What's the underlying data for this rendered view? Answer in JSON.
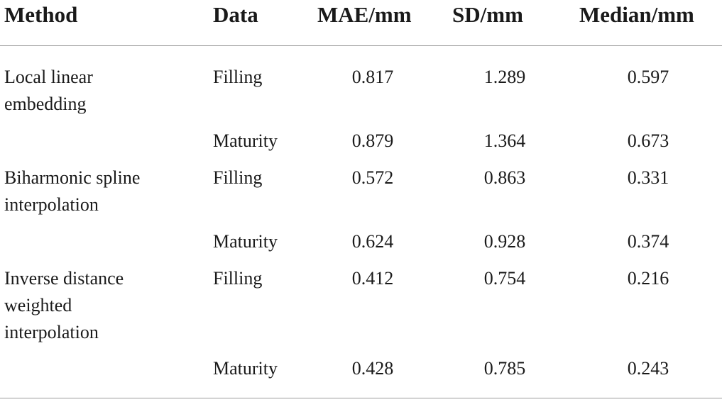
{
  "table": {
    "headers": {
      "method": "Method",
      "data": "Data",
      "mae": "MAE/mm",
      "sd": "SD/mm",
      "median": "Median/mm"
    },
    "rows": [
      {
        "method": "Local linear\nembedding",
        "data": "Filling",
        "mae": "0.817",
        "sd": "1.289",
        "median": "0.597"
      },
      {
        "method": "",
        "data": "Maturity",
        "mae": "0.879",
        "sd": "1.364",
        "median": "0.673"
      },
      {
        "method": "Biharmonic spline\ninterpolation",
        "data": "Filling",
        "mae": "0.572",
        "sd": "0.863",
        "median": "0.331"
      },
      {
        "method": "",
        "data": "Maturity",
        "mae": "0.624",
        "sd": "0.928",
        "median": "0.374"
      },
      {
        "method": "Inverse distance\nweighted\ninterpolation",
        "data": "Filling",
        "mae": "0.412",
        "sd": "0.754",
        "median": "0.216"
      },
      {
        "method": "",
        "data": "Maturity",
        "mae": "0.428",
        "sd": "0.785",
        "median": "0.243"
      }
    ]
  }
}
